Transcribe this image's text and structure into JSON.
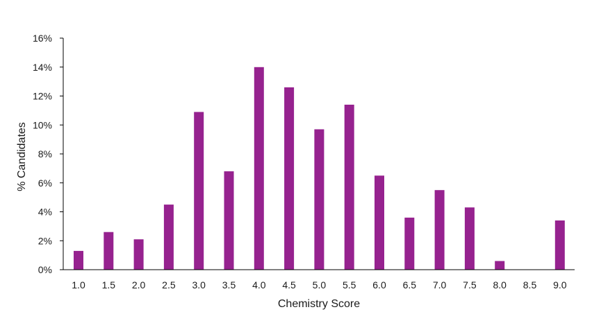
{
  "chart_data": {
    "type": "bar",
    "title": "",
    "xlabel": "Chemistry Score",
    "ylabel": "% Candidates",
    "categories": [
      "1.0",
      "1.5",
      "2.0",
      "2.5",
      "3.0",
      "3.5",
      "4.0",
      "4.5",
      "5.0",
      "5.5",
      "6.0",
      "6.5",
      "7.0",
      "7.5",
      "8.0",
      "8.5",
      "9.0"
    ],
    "values": [
      1.3,
      2.6,
      2.1,
      4.5,
      10.9,
      6.8,
      14.0,
      12.6,
      9.7,
      11.4,
      6.5,
      3.6,
      5.5,
      4.3,
      0.6,
      0.0,
      3.4
    ],
    "ylim": [
      0,
      16
    ],
    "yticks": [
      0,
      2,
      4,
      6,
      8,
      10,
      12,
      14,
      16
    ],
    "ytick_labels": [
      "0%",
      "2%",
      "4%",
      "6%",
      "8%",
      "10%",
      "12%",
      "14%",
      "16%"
    ],
    "grid": false,
    "legend": "none",
    "colors": {
      "bar": "#96228f",
      "axis": "#000000",
      "text": "#1a1a1a"
    }
  }
}
